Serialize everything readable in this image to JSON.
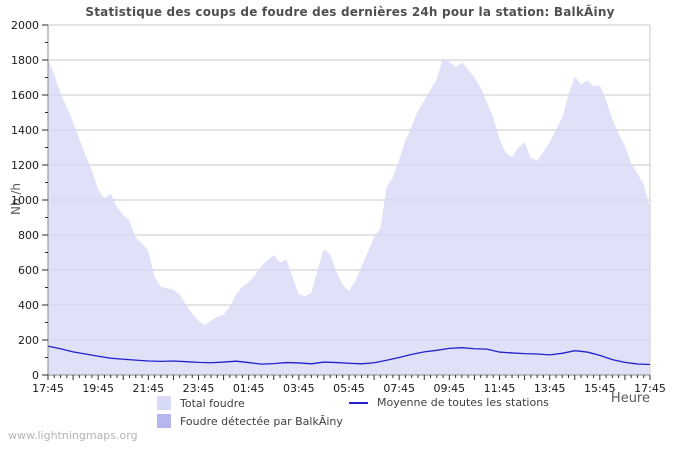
{
  "page": {
    "watermark": "www.lightningmaps.org"
  },
  "chart_data": {
    "type": "area",
    "title": "Statistique des coups de foudre des dernières 24h pour la station: BalkÃiny",
    "xlabel": "Heure",
    "ylabel": "Nb /h",
    "ylim": [
      0,
      2000
    ],
    "x_range_hours": 24,
    "x_start_label": "17:45",
    "grid": "horizontal only, every 200",
    "legend_position": "bottom",
    "y_ticks": [
      "0",
      "200",
      "400",
      "600",
      "800",
      "1000",
      "1200",
      "1400",
      "1600",
      "1800",
      "2000"
    ],
    "x_ticks": [
      "17:45",
      "19:45",
      "21:45",
      "23:45",
      "01:45",
      "03:45",
      "05:45",
      "07:45",
      "09:45",
      "11:45",
      "13:45",
      "15:45",
      "17:45"
    ],
    "colors": {
      "grid": "#c9c9c9",
      "axis": "#8a8a8a",
      "tick": "#2b2b2b",
      "tick_label": "#1a1a1a",
      "title": "#4f4f4f",
      "total_fill": "#d8d8f7",
      "station_fill": "#b7b7ef",
      "avg_line": "#2121cd",
      "watermark": "#b3b3b3"
    },
    "series": [
      {
        "name": "Total foudre",
        "type": "area",
        "color": "#d8d8f7",
        "step_hours": 0.25,
        "values": [
          1805,
          1715,
          1610,
          1530,
          1445,
          1350,
          1255,
          1170,
          1060,
          1010,
          1035,
          960,
          915,
          880,
          785,
          750,
          710,
          560,
          505,
          495,
          487,
          460,
          400,
          350,
          310,
          285,
          310,
          332,
          345,
          390,
          460,
          505,
          530,
          570,
          620,
          658,
          685,
          642,
          660,
          560,
          462,
          450,
          470,
          600,
          720,
          690,
          590,
          515,
          480,
          535,
          620,
          700,
          790,
          835,
          1075,
          1130,
          1230,
          1340,
          1420,
          1510,
          1570,
          1630,
          1690,
          1810,
          1790,
          1760,
          1785,
          1745,
          1700,
          1640,
          1560,
          1470,
          1350,
          1270,
          1245,
          1300,
          1330,
          1240,
          1225,
          1275,
          1330,
          1400,
          1470,
          1600,
          1705,
          1660,
          1685,
          1650,
          1655,
          1570,
          1460,
          1380,
          1310,
          1210,
          1150,
          1090,
          950
        ]
      },
      {
        "name": "Foudre détectée par BalkÃiny",
        "type": "area",
        "color": "#b7b7ef",
        "step_hours": 0.25,
        "constant": 0,
        "values": []
      },
      {
        "name": "Moyenne de toutes les stations",
        "type": "line",
        "color": "#2121cd",
        "step_hours": 0.5,
        "values": [
          165,
          150,
          132,
          120,
          107,
          96,
          90,
          85,
          80,
          78,
          80,
          76,
          72,
          70,
          74,
          79,
          71,
          62,
          65,
          71,
          69,
          64,
          74,
          71,
          67,
          64,
          70,
          84,
          100,
          118,
          132,
          141,
          152,
          156,
          150,
          148,
          131,
          126,
          122,
          120,
          115,
          124,
          139,
          131,
          112,
          88,
          72,
          63,
          60
        ]
      }
    ]
  }
}
